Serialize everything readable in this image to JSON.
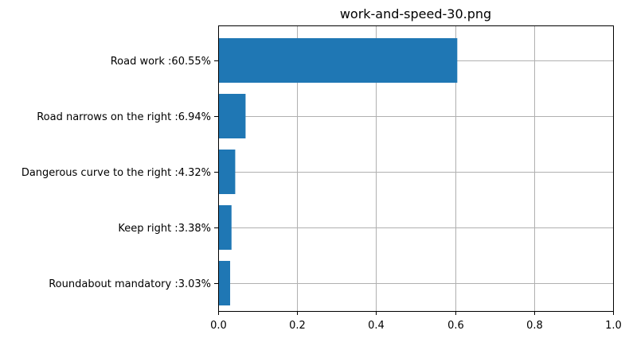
{
  "chart_data": {
    "type": "bar",
    "orientation": "horizontal",
    "title": "work-and-speed-30.png",
    "xlabel": "",
    "ylabel": "",
    "xlim": [
      0,
      1
    ],
    "x_ticks": [
      0.0,
      0.2,
      0.4,
      0.6,
      0.8,
      1.0
    ],
    "x_tick_labels": [
      "0.0",
      "0.2",
      "0.4",
      "0.6",
      "0.8",
      "1.0"
    ],
    "grid": true,
    "bar_color": "#1f77b4",
    "categories": [
      "Road work :60.55%",
      "Road narrows on the right :6.94%",
      "Dangerous curve to the right :4.32%",
      "Keep right :3.38%",
      "Roundabout mandatory :3.03%"
    ],
    "values": [
      0.6055,
      0.0694,
      0.0432,
      0.0338,
      0.0303
    ]
  }
}
